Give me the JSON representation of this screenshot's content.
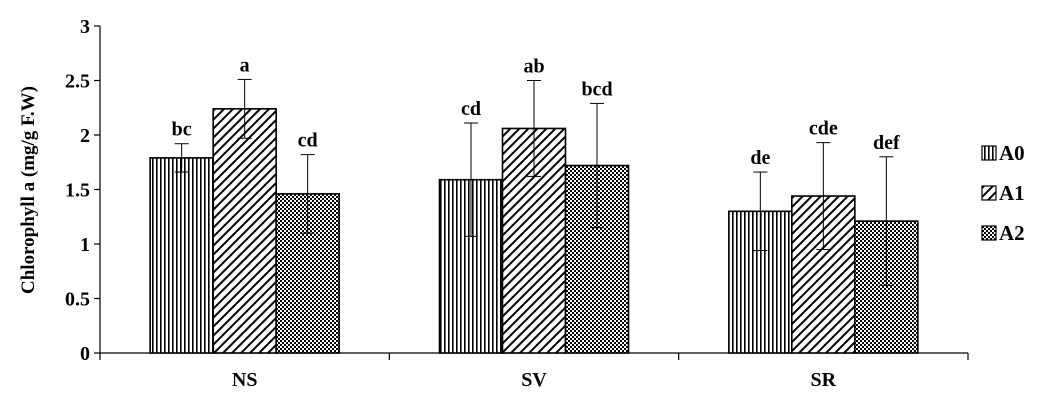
{
  "chart_data": {
    "type": "bar",
    "ylabel": "Chlorophyll  a (mg/g F.W)",
    "xlabel": "",
    "title": "",
    "ylim": [
      0,
      3
    ],
    "yticks": [
      "0",
      "0.5",
      "1",
      "1.5",
      "2",
      "2.5",
      "3"
    ],
    "categories": [
      "NS",
      "SV",
      "SR"
    ],
    "legend_position": "right",
    "grid": false,
    "series": [
      {
        "name": "A0",
        "pattern": "vertical-lines",
        "values": [
          1.79,
          1.59,
          1.3
        ],
        "errors": [
          0.13,
          0.52,
          0.36
        ],
        "labels": [
          "bc",
          "cd",
          "de"
        ]
      },
      {
        "name": "A1",
        "pattern": "diagonal-lines",
        "values": [
          2.24,
          2.06,
          1.44
        ],
        "errors": [
          0.27,
          0.44,
          0.49
        ],
        "labels": [
          "a",
          "ab",
          "cde"
        ]
      },
      {
        "name": "A2",
        "pattern": "checkerboard",
        "values": [
          1.46,
          1.72,
          1.21
        ],
        "errors": [
          0.36,
          0.57,
          0.59
        ],
        "labels": [
          "cd",
          "bcd",
          "def"
        ]
      }
    ],
    "colors": {
      "stroke": "#000000",
      "fill": "#ffffff"
    }
  }
}
